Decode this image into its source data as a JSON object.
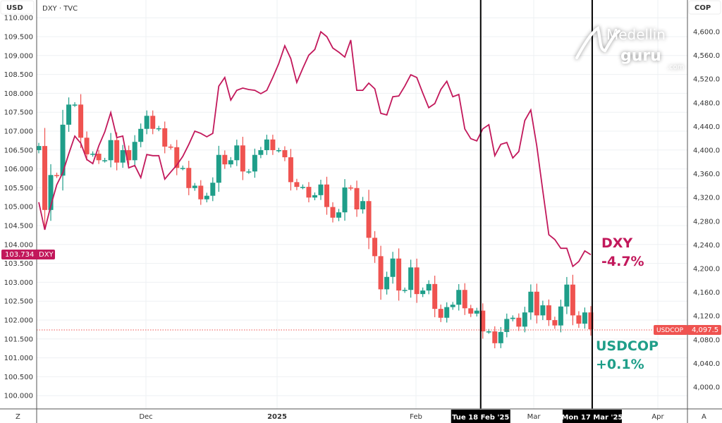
{
  "header": {
    "left_unit": "USD",
    "symbol_title": "DXY · TVC",
    "right_unit": "COP"
  },
  "footer": {
    "left_button": "Z",
    "right_button": "A"
  },
  "watermark": {
    "line1": "Medellin",
    "line2": "guru",
    "line3": ".com"
  },
  "colors": {
    "up": "#1f9e89",
    "down": "#ef5350",
    "dxy_line": "#c2185b",
    "marker_line": "#000000",
    "grid": "#eef0f3"
  },
  "annotations": {
    "dxy_name": "DXY",
    "dxy_change": "-4.7%",
    "cop_name": "USDCOP",
    "cop_change": "+0.1%"
  },
  "price_tags": {
    "dxy_value": "103.734",
    "dxy_label": "DXY",
    "cop_value": "4,097.5",
    "cop_label": "USDCOP"
  },
  "crosshair_labels": [
    "Tue 18 Feb '25",
    "Mon 17 Mar '25"
  ],
  "chart_data": {
    "type": "line",
    "title": "DXY · TVC",
    "grid": true,
    "x_tick_labels": [
      "Dec",
      "2025",
      "Feb",
      "Mar",
      "Apr"
    ],
    "left_axis": {
      "unit": "USD",
      "range": [
        100.0,
        110.0
      ],
      "ticks": [
        "110.000",
        "109.500",
        "109.000",
        "108.500",
        "108.000",
        "107.500",
        "107.000",
        "106.500",
        "106.000",
        "105.500",
        "105.000",
        "104.500",
        "104.000",
        "103.500",
        "103.000",
        "102.500",
        "102.000",
        "101.500",
        "101.000",
        "100.500",
        "100.000"
      ]
    },
    "right_axis": {
      "unit": "COP",
      "range": [
        4000,
        4600
      ],
      "ticks": [
        "4,600.0",
        "4,560.0",
        "4,520.0",
        "4,480.0",
        "4,440.0",
        "4,400.0",
        "4,360.0",
        "4,320.0",
        "4,280.0",
        "4,240.0",
        "4,200.0",
        "4,160.0",
        "4,120.0",
        "4,080.0",
        "4,040.0",
        "4,000.0"
      ]
    },
    "vertical_markers_at_index": [
      74,
      92
    ],
    "series": [
      {
        "name": "DXY",
        "type": "line",
        "axis": "left",
        "values": [
          105.12,
          104.39,
          105.02,
          105.58,
          105.9,
          106.4,
          106.87,
          106.68,
          106.25,
          106.14,
          106.61,
          106.98,
          107.49,
          106.83,
          106.87,
          106.03,
          106.09,
          105.77,
          106.38,
          106.35,
          106.35,
          105.73,
          105.92,
          106.1,
          106.33,
          106.65,
          107.0,
          106.94,
          106.85,
          106.94,
          108.19,
          108.42,
          107.82,
          108.08,
          108.14,
          108.1,
          108.08,
          107.99,
          108.08,
          108.42,
          108.79,
          109.26,
          108.92,
          108.29,
          108.66,
          109.01,
          109.16,
          109.63,
          109.5,
          109.2,
          109.09,
          108.96,
          109.41,
          108.08,
          108.08,
          108.27,
          108.12,
          107.47,
          107.43,
          107.91,
          107.93,
          108.19,
          108.49,
          108.42,
          108.01,
          107.62,
          107.73,
          108.1,
          108.32,
          107.91,
          107.97,
          107.06,
          106.8,
          106.74,
          107.06,
          107.17,
          106.35,
          106.65,
          106.7,
          106.29,
          106.46,
          107.28,
          107.56,
          106.61,
          105.43,
          104.26,
          104.13,
          103.9,
          103.9,
          103.42,
          103.55,
          103.83,
          103.73
        ]
      },
      {
        "name": "USDCOP",
        "type": "candlestick",
        "axis": "right",
        "first_open": 4400,
        "closes": [
          4407,
          4299,
          4358,
          4357,
          4443,
          4477,
          4477,
          4421,
          4393,
          4394,
          4383,
          4383,
          4417,
          4379,
          4400,
          4383,
          4414,
          4436,
          4458,
          4436,
          4437,
          4406,
          4405,
          4370,
          4370,
          4336,
          4340,
          4317,
          4323,
          4345,
          4392,
          4376,
          4383,
          4408,
          4364,
          4364,
          4392,
          4400,
          4418,
          4400,
          4400,
          4388,
          4346,
          4338,
          4338,
          4320,
          4324,
          4342,
          4304,
          4286,
          4295,
          4337,
          4336,
          4300,
          4314,
          4252,
          4221,
          4165,
          4186,
          4217,
          4163,
          4164,
          4202,
          4157,
          4163,
          4174,
          4132,
          4117,
          4135,
          4139,
          4164,
          4133,
          4124,
          4129,
          4094,
          4094,
          4074,
          4093,
          4115,
          4117,
          4102,
          4126,
          4161,
          4121,
          4138,
          4113,
          4104,
          4136,
          4173,
          4121,
          4107,
          4126,
          4097.5
        ]
      }
    ]
  }
}
